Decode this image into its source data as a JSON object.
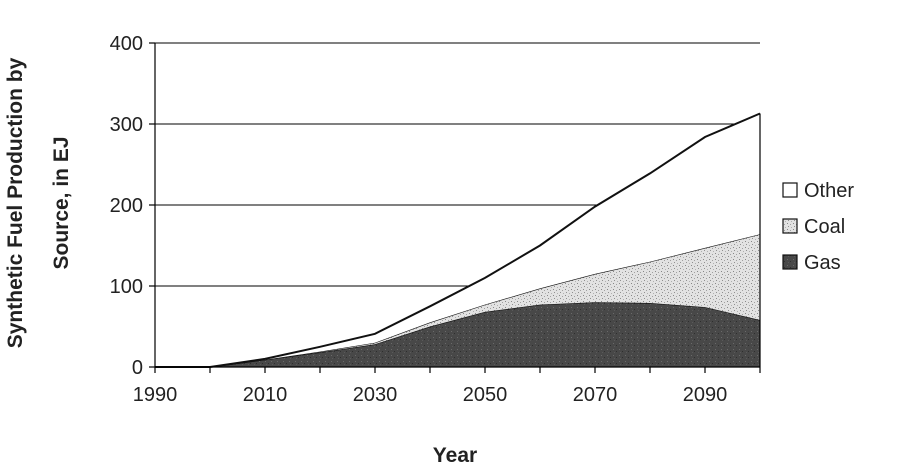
{
  "chart_data": {
    "type": "area",
    "stacked": true,
    "xlabel": "Year",
    "ylabel_line1": "Synthetic Fuel Production by",
    "ylabel_line2": "Source, in EJ",
    "xlim": [
      1990,
      2100
    ],
    "ylim": [
      0,
      400
    ],
    "x_ticks": [
      "1990",
      "2010",
      "2030",
      "2050",
      "2070",
      "2090"
    ],
    "y_ticks": [
      "0",
      "100",
      "200",
      "300",
      "400"
    ],
    "grid": "horizontal",
    "legend_position": "right",
    "x": [
      1990,
      2000,
      2010,
      2020,
      2030,
      2040,
      2050,
      2060,
      2070,
      2080,
      2090,
      2100
    ],
    "series": [
      {
        "name": "Gas",
        "color": "#4a4a4a",
        "pattern": "dark-speckle",
        "values": [
          0,
          0,
          9,
          18,
          28,
          50,
          68,
          77,
          80,
          79,
          74,
          58
        ]
      },
      {
        "name": "Coal",
        "color": "#d8d8d8",
        "pattern": "light-speckle",
        "values": [
          0,
          0,
          0,
          1,
          2,
          5,
          9,
          20,
          35,
          51,
          73,
          106
        ]
      },
      {
        "name": "Other",
        "color": "#ffffff",
        "pattern": "none",
        "values": [
          0,
          0,
          1,
          6,
          11,
          20,
          33,
          53,
          83,
          109,
          137,
          149
        ]
      }
    ],
    "totals": [
      0,
      0,
      10,
      25,
      41,
      75,
      110,
      150,
      198,
      239,
      284,
      313
    ]
  }
}
